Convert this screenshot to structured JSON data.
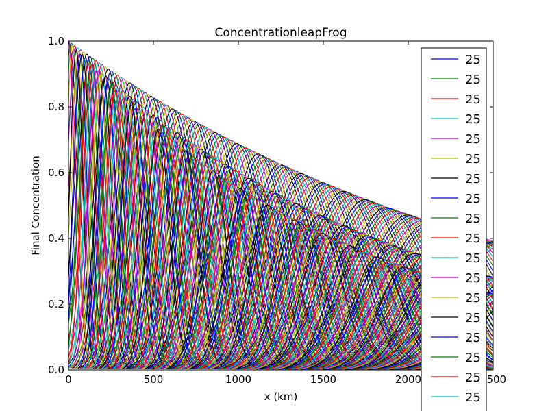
{
  "chart_data": {
    "type": "line",
    "title": "ConcentrationleapFrog",
    "xlabel": "x (km)",
    "ylabel": "Final Concentration",
    "xlim": [
      0,
      2500
    ],
    "ylim": [
      0,
      1.0
    ],
    "x_ticks": [
      "0",
      "500",
      "1000",
      "1500",
      "2000",
      "2500"
    ],
    "y_ticks": [
      "0.0",
      "0.2",
      "0.4",
      "0.6",
      "0.8",
      "1.0"
    ],
    "grid": false,
    "legend_position": "right",
    "color_cycle": [
      "#0000ff",
      "#008000",
      "#ff0000",
      "#00bfbf",
      "#bf00bf",
      "#bfbf00",
      "#000000"
    ],
    "legend_entries": [
      {
        "label": "25",
        "color": "#0000ff"
      },
      {
        "label": "25",
        "color": "#008000"
      },
      {
        "label": "25",
        "color": "#ff0000"
      },
      {
        "label": "25",
        "color": "#00bfbf"
      },
      {
        "label": "25",
        "color": "#bf00bf"
      },
      {
        "label": "25",
        "color": "#bfbf00"
      },
      {
        "label": "25",
        "color": "#000000"
      },
      {
        "label": "25",
        "color": "#0000ff"
      },
      {
        "label": "25",
        "color": "#008000"
      },
      {
        "label": "25",
        "color": "#ff0000"
      },
      {
        "label": "25",
        "color": "#00bfbf"
      },
      {
        "label": "25",
        "color": "#bf00bf"
      },
      {
        "label": "25",
        "color": "#bfbf00"
      },
      {
        "label": "25",
        "color": "#000000"
      },
      {
        "label": "25",
        "color": "#0000ff"
      },
      {
        "label": "25",
        "color": "#008000"
      },
      {
        "label": "25",
        "color": "#ff0000"
      },
      {
        "label": "25",
        "color": "#00bfbf"
      }
    ],
    "families": [
      {
        "peak_start": [
          0,
          1.0
        ],
        "peak_end": [
          2500,
          0.39
        ],
        "center_step": 18,
        "pulse_width_start": 60,
        "pulse_width_end": 300
      },
      {
        "peak_start": [
          0,
          1.0
        ],
        "peak_end": [
          2500,
          0.28
        ],
        "center_step": 20,
        "pulse_width_start": 45,
        "pulse_width_end": 230
      },
      {
        "peak_start": [
          0,
          1.0
        ],
        "peak_end": [
          2500,
          0.23
        ],
        "center_step": 23,
        "pulse_width_start": 35,
        "pulse_width_end": 180
      }
    ]
  }
}
